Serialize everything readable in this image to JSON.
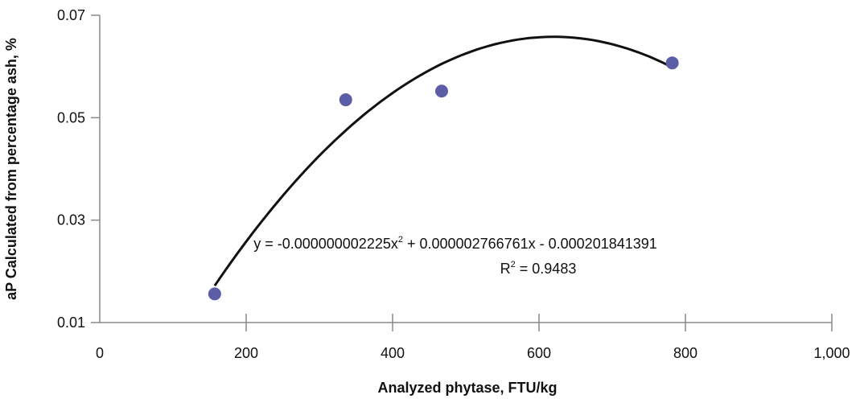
{
  "chart_data": {
    "type": "scatter",
    "title": "",
    "xlabel": "Analyzed phytase, FTU/kg",
    "ylabel": "aP Calculated from percentage ash, %",
    "xlim": [
      0,
      1000
    ],
    "ylim": [
      0.01,
      0.07
    ],
    "x_ticks": [
      "0",
      "200",
      "400",
      "600",
      "800",
      "1,000"
    ],
    "y_ticks": [
      "0.07",
      "0.05",
      "0.03",
      "0.01"
    ],
    "x_tick_values": [
      0,
      200,
      400,
      600,
      800,
      1000
    ],
    "y_tick_values": [
      0.07,
      0.05,
      0.03,
      0.01
    ],
    "grid": false,
    "legend": "none",
    "series": [
      {
        "marker_color": "#5b5ea6",
        "points": [
          {
            "x": 157,
            "y": 0.0156
          },
          {
            "x": 336,
            "y": 0.0535
          },
          {
            "x": 467,
            "y": 0.0552
          },
          {
            "x": 782,
            "y": 0.0607
          }
        ]
      }
    ],
    "trendline": {
      "type": "polynomial",
      "x_range": [
        157,
        782
      ],
      "color": "#111111",
      "peak": {
        "x": 620,
        "y": 0.0658
      },
      "equation_main": "y = -0.000000002225x",
      "equation_exp": "2",
      "equation_rest": " + 0.000002766761x - 0.000201841391",
      "r2_label": "R",
      "r2_exp": "2",
      "r2_value": " = 0.9483"
    }
  }
}
